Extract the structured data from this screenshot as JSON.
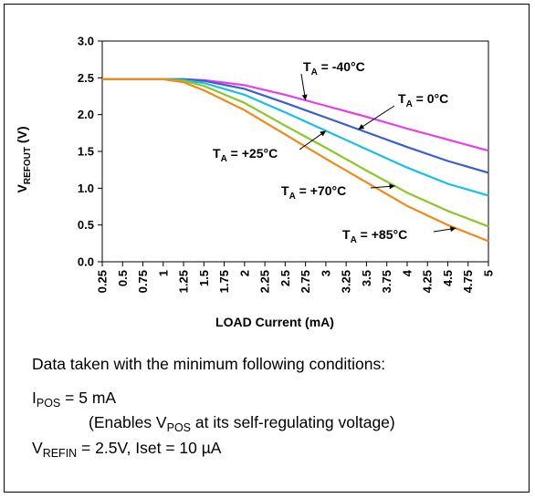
{
  "chart_data": {
    "type": "line",
    "ylabel_main": "V",
    "ylabel_sub": "REFOUT",
    "ylabel_unit": " (V)",
    "xlabel": "LOAD Current (mA)",
    "xlim": [
      0.25,
      5
    ],
    "ylim": [
      0,
      3
    ],
    "x_ticks": [
      "0.25",
      "0.5",
      "0.75",
      "1",
      "1.25",
      "1.5",
      "1.75",
      "2",
      "2.25",
      "2.5",
      "2.75",
      "3",
      "3.25",
      "3.5",
      "3.75",
      "4",
      "4.25",
      "4.5",
      "4.75",
      "5"
    ],
    "y_ticks": [
      "0.0",
      "0.5",
      "1.0",
      "1.5",
      "2.0",
      "2.5",
      "3.0"
    ],
    "grid": false,
    "series": [
      {
        "name": "-40°C",
        "color": "#e83ee8",
        "x": [
          0.25,
          1.0,
          1.25,
          1.5,
          2.0,
          2.5,
          3.0,
          3.5,
          4.0,
          4.5,
          5.0
        ],
        "y": [
          2.48,
          2.48,
          2.48,
          2.47,
          2.4,
          2.27,
          2.12,
          1.97,
          1.81,
          1.66,
          1.51
        ]
      },
      {
        "name": "0°C",
        "color": "#3a5fd0",
        "x": [
          0.25,
          1.0,
          1.25,
          1.5,
          2.0,
          2.5,
          3.0,
          3.5,
          4.0,
          4.5,
          5.0
        ],
        "y": [
          2.48,
          2.48,
          2.48,
          2.46,
          2.35,
          2.16,
          1.96,
          1.76,
          1.56,
          1.37,
          1.21
        ]
      },
      {
        "name": "+25°C",
        "color": "#18c0e8",
        "x": [
          0.25,
          1.0,
          1.25,
          1.5,
          2.0,
          2.5,
          3.0,
          3.5,
          4.0,
          4.5,
          5.0
        ],
        "y": [
          2.48,
          2.48,
          2.47,
          2.43,
          2.27,
          2.03,
          1.78,
          1.53,
          1.28,
          1.06,
          0.9
        ]
      },
      {
        "name": "+70°C",
        "color": "#8ac828",
        "x": [
          0.25,
          1.0,
          1.25,
          1.5,
          2.0,
          2.5,
          3.0,
          3.5,
          4.0,
          4.5,
          5.0
        ],
        "y": [
          2.48,
          2.48,
          2.46,
          2.39,
          2.16,
          1.85,
          1.55,
          1.24,
          0.94,
          0.69,
          0.48
        ]
      },
      {
        "name": "+85°C",
        "color": "#f08a18",
        "x": [
          0.25,
          1.0,
          1.25,
          1.5,
          2.0,
          2.5,
          3.0,
          3.5,
          4.0,
          4.5,
          5.0
        ],
        "y": [
          2.48,
          2.48,
          2.44,
          2.33,
          2.06,
          1.73,
          1.4,
          1.08,
          0.76,
          0.5,
          0.28
        ]
      }
    ],
    "annotations": [
      {
        "label_main": "T",
        "label_sub": "A",
        "label_val": " = -40°C",
        "series": "-40°C"
      },
      {
        "label_main": "T",
        "label_sub": "A",
        "label_val": " = 0°C",
        "series": "0°C"
      },
      {
        "label_main": "T",
        "label_sub": "A",
        "label_val": " = +25°C",
        "series": "+25°C"
      },
      {
        "label_main": "T",
        "label_sub": "A",
        "label_val": " = +70°C",
        "series": "+70°C"
      },
      {
        "label_main": "T",
        "label_sub": "A",
        "label_val": " = +85°C",
        "series": "+85°C"
      }
    ]
  },
  "notes": {
    "intro": "Data taken with the minimum following conditions:",
    "ipos_main": "I",
    "ipos_sub": "POS",
    "ipos_val": " = 5 mA",
    "enables_pre": "(Enables V",
    "enables_sub": "POS",
    "enables_post": " at its self-regulating voltage)",
    "vrefin_main": "V",
    "vrefin_sub": "REFIN",
    "vrefin_val": " = 2.5V, Iset = 10 µA"
  }
}
